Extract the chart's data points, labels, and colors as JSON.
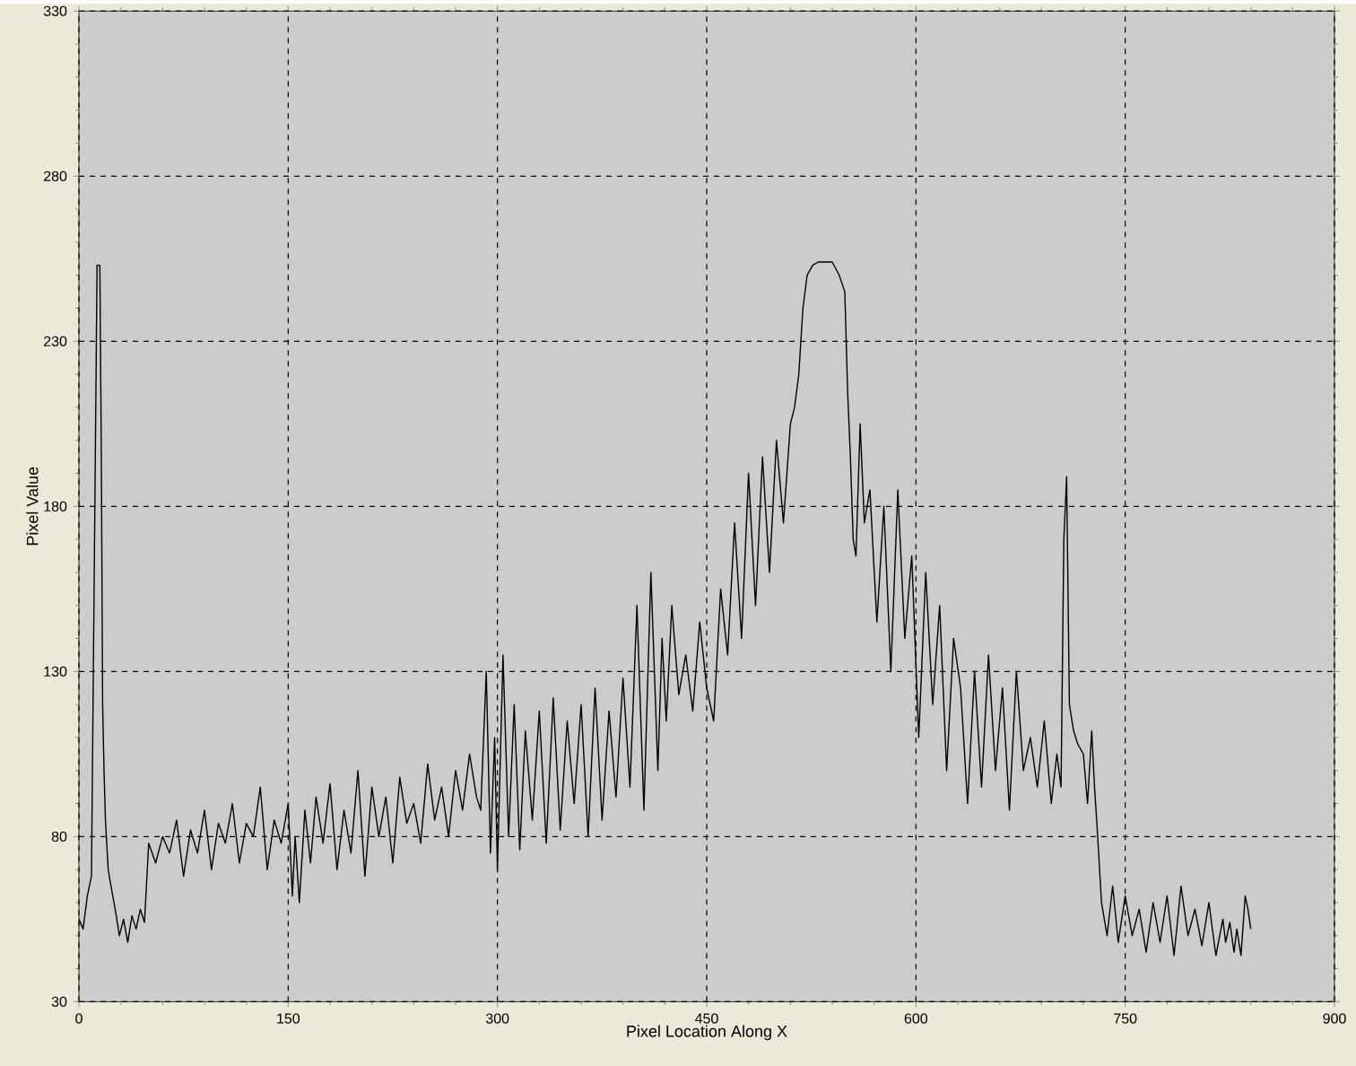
{
  "chart_data": {
    "type": "line",
    "xlabel": "Pixel Location Along X",
    "ylabel": "Pixel Value",
    "xlim": [
      0,
      900
    ],
    "ylim": [
      30,
      330
    ],
    "xticks": [
      0,
      150,
      300,
      450,
      600,
      750,
      900
    ],
    "yticks": [
      30,
      80,
      130,
      180,
      230,
      280,
      330
    ],
    "grid": true,
    "marker": "none",
    "line_style": "solid",
    "x": [
      0,
      3,
      6,
      9,
      11,
      13,
      15,
      16,
      17,
      18,
      19,
      21,
      23,
      26,
      29,
      32,
      35,
      38,
      41,
      44,
      47,
      50,
      55,
      60,
      65,
      70,
      75,
      80,
      85,
      90,
      95,
      100,
      105,
      110,
      115,
      120,
      125,
      130,
      135,
      140,
      145,
      150,
      153,
      155,
      158,
      162,
      166,
      170,
      175,
      180,
      185,
      190,
      195,
      200,
      205,
      210,
      215,
      220,
      225,
      230,
      235,
      240,
      245,
      250,
      255,
      260,
      265,
      270,
      275,
      280,
      285,
      288,
      292,
      295,
      298,
      300,
      304,
      308,
      312,
      316,
      320,
      325,
      330,
      335,
      340,
      345,
      350,
      355,
      360,
      365,
      370,
      375,
      380,
      385,
      390,
      395,
      400,
      405,
      410,
      415,
      418,
      421,
      425,
      430,
      435,
      440,
      445,
      450,
      455,
      460,
      465,
      470,
      475,
      480,
      485,
      490,
      495,
      500,
      505,
      510,
      513,
      516,
      519,
      522,
      526,
      530,
      535,
      540,
      545,
      549,
      551,
      553,
      555,
      557,
      560,
      563,
      567,
      572,
      577,
      582,
      587,
      592,
      597,
      602,
      607,
      612,
      617,
      622,
      627,
      632,
      637,
      642,
      647,
      652,
      657,
      662,
      667,
      672,
      677,
      682,
      687,
      692,
      697,
      701,
      704,
      706,
      708,
      710,
      713,
      716,
      720,
      723,
      726,
      728,
      730,
      733,
      737,
      741,
      745,
      750,
      755,
      760,
      765,
      770,
      775,
      780,
      785,
      790,
      795,
      800,
      805,
      810,
      815,
      820,
      822,
      825,
      828,
      830,
      833,
      836,
      838,
      840
    ],
    "series": [
      {
        "color": "#000000",
        "values": [
          55,
          52,
          62,
          68,
          160,
          253,
          253,
          200,
          120,
          100,
          85,
          70,
          65,
          58,
          50,
          55,
          48,
          56,
          52,
          58,
          54,
          78,
          72,
          80,
          75,
          85,
          68,
          82,
          75,
          88,
          70,
          84,
          78,
          90,
          72,
          84,
          80,
          95,
          70,
          85,
          78,
          90,
          62,
          80,
          60,
          88,
          72,
          92,
          78,
          96,
          70,
          88,
          75,
          100,
          68,
          95,
          80,
          92,
          72,
          98,
          84,
          90,
          78,
          102,
          85,
          95,
          80,
          100,
          88,
          105,
          92,
          88,
          130,
          75,
          110,
          70,
          135,
          80,
          120,
          76,
          112,
          85,
          118,
          78,
          122,
          82,
          115,
          90,
          120,
          80,
          125,
          85,
          118,
          92,
          128,
          95,
          150,
          88,
          160,
          100,
          140,
          115,
          150,
          123,
          135,
          118,
          145,
          125,
          115,
          155,
          135,
          175,
          140,
          190,
          150,
          195,
          160,
          200,
          175,
          205,
          210,
          220,
          240,
          250,
          253,
          254,
          254,
          254,
          250,
          245,
          215,
          195,
          170,
          165,
          205,
          175,
          185,
          145,
          180,
          130,
          185,
          140,
          165,
          110,
          160,
          120,
          150,
          100,
          140,
          125,
          90,
          130,
          95,
          135,
          100,
          125,
          88,
          130,
          100,
          110,
          95,
          115,
          90,
          105,
          95,
          170,
          189,
          120,
          112,
          108,
          105,
          90,
          112,
          95,
          82,
          60,
          50,
          65,
          48,
          62,
          50,
          58,
          45,
          60,
          48,
          62,
          44,
          65,
          50,
          58,
          47,
          60,
          44,
          55,
          48,
          54,
          45,
          52,
          44,
          62,
          58,
          52
        ]
      }
    ]
  }
}
